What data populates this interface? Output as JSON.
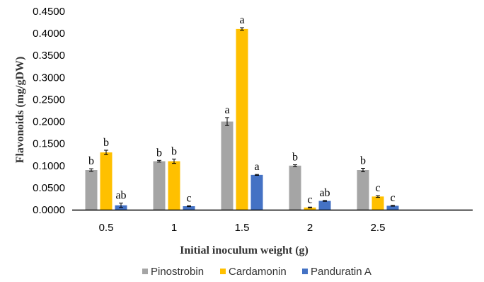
{
  "chart_data": {
    "type": "bar",
    "xlabel": "Initial inoculum weight (g)",
    "ylabel": "Flavonoids (mg/gDW)",
    "ylim": [
      0,
      0.45
    ],
    "yticks": [
      "0.0000",
      "0.0500",
      "0.1000",
      "0.1500",
      "0.2000",
      "0.2500",
      "0.3000",
      "0.3500",
      "0.4000",
      "0.4500"
    ],
    "categories": [
      "0.5",
      "1",
      "1.5",
      "2",
      "2.5"
    ],
    "series": [
      {
        "name": "Pinostrobin",
        "color": "#a5a5a5",
        "values": [
          0.09,
          0.11,
          0.2,
          0.1,
          0.09
        ],
        "errors": [
          0.003,
          0.002,
          0.009,
          0.002,
          0.004
        ],
        "labels": [
          "b",
          "b",
          "a",
          "b",
          "b"
        ]
      },
      {
        "name": "Cardamonin",
        "color": "#ffc000",
        "values": [
          0.13,
          0.11,
          0.41,
          0.005,
          0.03
        ],
        "errors": [
          0.005,
          0.005,
          0.003,
          0.001,
          0.002
        ],
        "labels": [
          "b",
          "b",
          "a",
          "c",
          "c"
        ]
      },
      {
        "name": "Panduratin A",
        "color": "#4472c4",
        "values": [
          0.01,
          0.008,
          0.079,
          0.02,
          0.009
        ],
        "errors": [
          0.005,
          0.001,
          0.001,
          0.001,
          0.001
        ],
        "labels": [
          "ab",
          "c",
          "a",
          "ab",
          "c"
        ]
      }
    ],
    "legend_position": "bottom",
    "grid": false
  }
}
